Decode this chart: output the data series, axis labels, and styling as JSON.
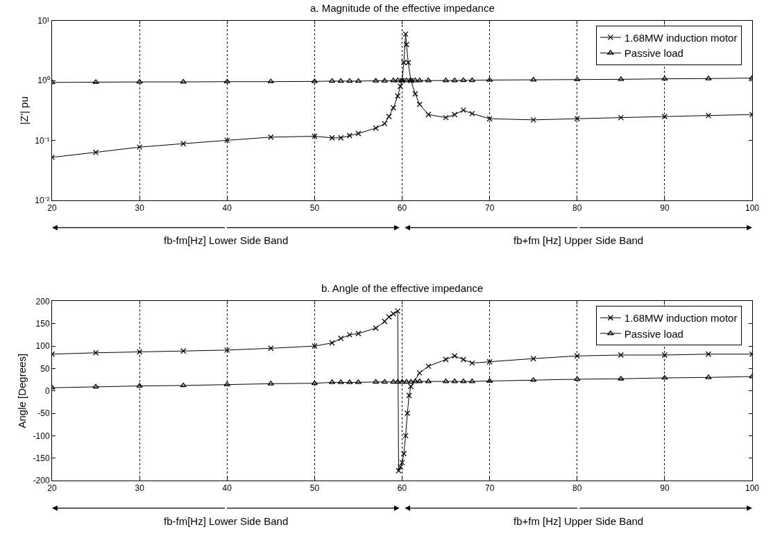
{
  "chart_data": [
    {
      "type": "line",
      "title": "a. Magnitude of the effective impedance",
      "ylabel": "|Z'| pu",
      "log": "y",
      "grid": "x",
      "legend": "top right",
      "line_style": "solid",
      "xlim": [
        20,
        100
      ],
      "xticks": [
        20,
        30,
        40,
        50,
        60,
        70,
        80,
        90,
        100
      ],
      "ylim": [
        0.01,
        10
      ],
      "yticks": [
        {
          "value": 0.01,
          "label": "10⁻²"
        },
        {
          "value": 0.1,
          "label": "10⁻¹"
        },
        {
          "value": 1,
          "label": "10⁰"
        },
        {
          "value": 10,
          "label": "10¹"
        }
      ],
      "annotations": [
        "fb-fm[Hz] Lower Side Band",
        "fb+fm [Hz] Upper Side Band"
      ],
      "series": [
        {
          "name": "1.68MW induction motor",
          "color": "#000000",
          "marker": "cross",
          "x": [
            20,
            25,
            30,
            35,
            40,
            45,
            50,
            52,
            53,
            54,
            55,
            57,
            58,
            58.5,
            59,
            59.5,
            59.8,
            60,
            60.2,
            60.4,
            60.5,
            60.7,
            61,
            61.5,
            62,
            63,
            65,
            66,
            67,
            68,
            70,
            75,
            80,
            85,
            90,
            95,
            100
          ],
          "values": [
            0.052,
            0.063,
            0.077,
            0.088,
            0.1,
            0.113,
            0.117,
            0.11,
            0.11,
            0.12,
            0.13,
            0.16,
            0.19,
            0.25,
            0.35,
            0.55,
            0.8,
            1.0,
            2,
            6,
            4,
            2,
            1.0,
            0.6,
            0.4,
            0.27,
            0.24,
            0.27,
            0.32,
            0.28,
            0.23,
            0.22,
            0.23,
            0.24,
            0.25,
            0.26,
            0.27
          ]
        },
        {
          "name": "Passive load",
          "color": "#000000",
          "marker": "triangle",
          "x": [
            20,
            25,
            30,
            35,
            40,
            45,
            50,
            52,
            53,
            54,
            55,
            57,
            58,
            59,
            59.5,
            60,
            60.5,
            61,
            61.5,
            62,
            63,
            65,
            66,
            67,
            68,
            70,
            75,
            80,
            85,
            90,
            95,
            100
          ],
          "values": [
            0.93,
            0.94,
            0.95,
            0.95,
            0.96,
            0.96,
            0.97,
            0.98,
            0.98,
            0.98,
            0.98,
            0.99,
            0.99,
            1.0,
            1.0,
            1.0,
            1.0,
            1.0,
            1.0,
            1.0,
            1.0,
            1.0,
            1.0,
            1.01,
            1.01,
            1.02,
            1.03,
            1.04,
            1.05,
            1.07,
            1.08,
            1.1
          ]
        }
      ]
    },
    {
      "type": "line",
      "title": "b. Angle of the effective impedance",
      "ylabel": "Angle [Degrees]",
      "grid": "x",
      "legend": "top right",
      "line_style": "solid",
      "xlim": [
        20,
        100
      ],
      "xticks": [
        20,
        30,
        40,
        50,
        60,
        70,
        80,
        90,
        100
      ],
      "ylim": [
        -200,
        200
      ],
      "yticks": [
        -200,
        -150,
        -100,
        -50,
        0,
        50,
        100,
        150,
        200
      ],
      "annotations": [
        "fb-fm[Hz] Lower Side Band",
        "fb+fm [Hz] Upper Side Band"
      ],
      "series": [
        {
          "name": "1.68MW induction motor",
          "color": "#000000",
          "marker": "cross",
          "x": [
            20,
            25,
            30,
            35,
            40,
            45,
            50,
            52,
            53,
            54,
            55,
            57,
            58,
            58.5,
            59,
            59.5,
            59.6,
            59.8,
            60,
            60.2,
            60.4,
            60.6,
            60.8,
            61,
            62,
            63,
            65,
            66,
            67,
            68,
            70,
            75,
            80,
            85,
            90,
            95,
            100
          ],
          "values": [
            82,
            85,
            87,
            89,
            91,
            95,
            100,
            107,
            117,
            125,
            128,
            140,
            155,
            165,
            172,
            178,
            -178,
            -170,
            -160,
            -140,
            -100,
            -50,
            -10,
            10,
            40,
            55,
            70,
            78,
            70,
            62,
            65,
            72,
            78,
            80,
            80,
            82,
            82
          ]
        },
        {
          "name": "Passive load",
          "color": "#000000",
          "marker": "triangle",
          "x": [
            20,
            25,
            30,
            35,
            40,
            45,
            50,
            52,
            53,
            54,
            55,
            57,
            58,
            59,
            59.5,
            60,
            60.5,
            61,
            61.5,
            62,
            63,
            65,
            66,
            67,
            68,
            70,
            75,
            80,
            85,
            90,
            95,
            100
          ],
          "values": [
            7,
            9,
            11,
            12,
            14,
            16,
            17,
            19,
            19,
            19,
            19,
            20,
            20,
            20,
            20,
            20,
            20,
            20,
            21,
            21,
            21,
            21,
            21,
            21,
            21,
            22,
            24,
            26,
            27,
            29,
            30,
            32
          ]
        }
      ]
    }
  ]
}
